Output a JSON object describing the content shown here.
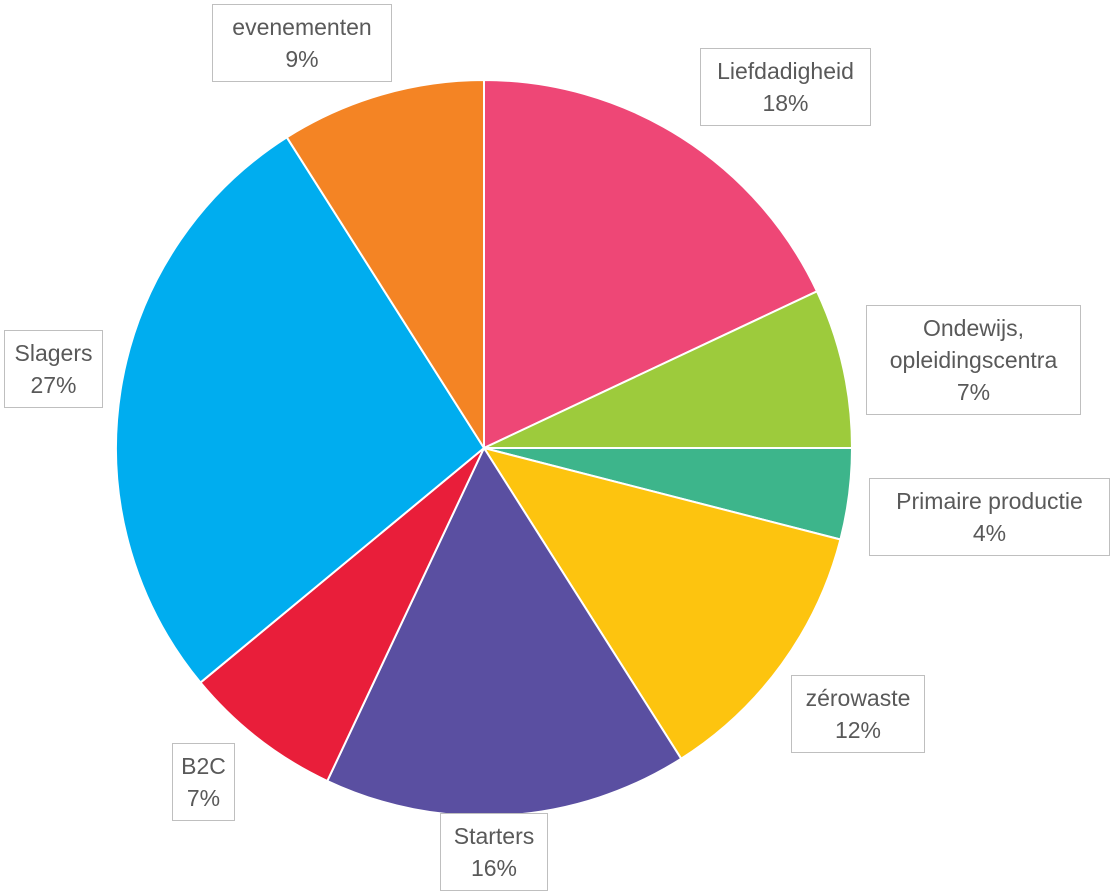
{
  "chart_data": {
    "type": "pie",
    "categories": [
      "Liefdadigheid",
      "Ondewijs, opleidingscentra",
      "Primaire productie",
      "zérowaste",
      "Starters",
      "B2C",
      "Slagers",
      "evenementen"
    ],
    "values": [
      18,
      7,
      4,
      12,
      16,
      7,
      27,
      9
    ],
    "value_labels": [
      "18%",
      "7%",
      "4%",
      "12%",
      "16%",
      "7%",
      "27%",
      "9%"
    ],
    "colors": [
      "#ee4776",
      "#9dcb3c",
      "#3db58b",
      "#fdc40f",
      "#5a4fa1",
      "#e91e3a",
      "#00adef",
      "#f48424"
    ]
  }
}
